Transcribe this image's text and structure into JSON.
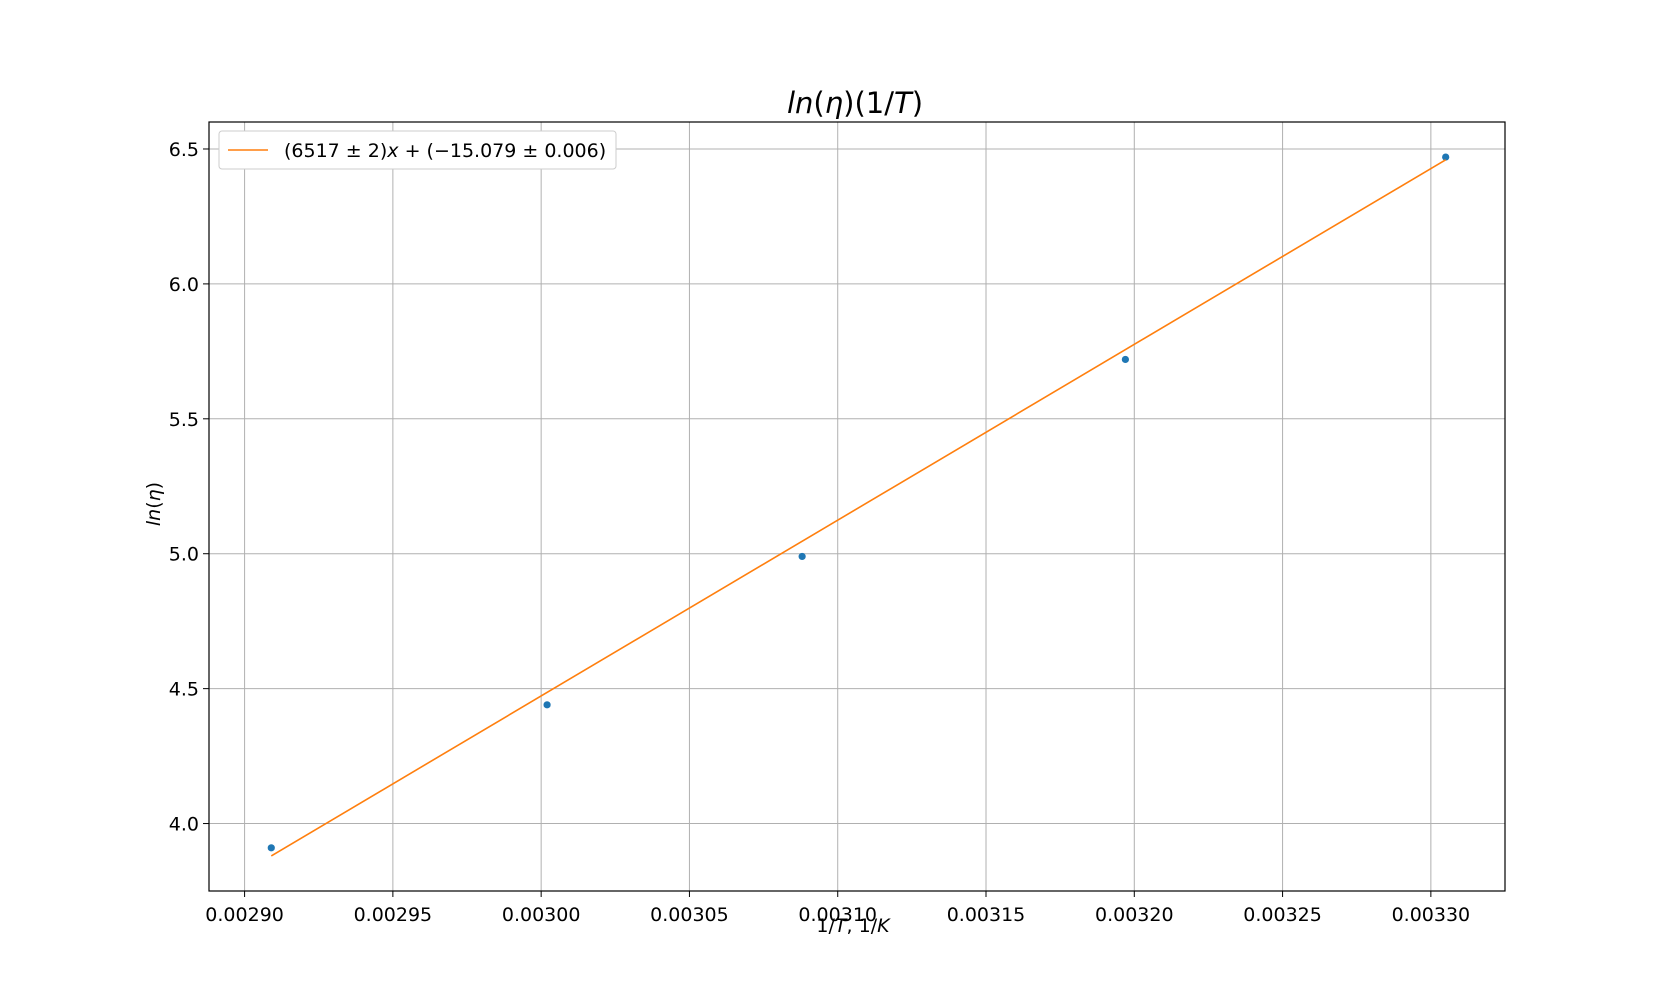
{
  "chart_data": {
    "type": "scatter",
    "title": "ln(η)(1/T)",
    "xlabel": "1/T, 1/K",
    "ylabel": "ln(η)",
    "xlim": [
      0.002888,
      0.003325
    ],
    "ylim": [
      3.75,
      6.6
    ],
    "xticks": [
      0.0029,
      0.00295,
      0.003,
      0.00305,
      0.0031,
      0.00315,
      0.0032,
      0.00325,
      0.0033
    ],
    "xtick_labels": [
      "0.00290",
      "0.00295",
      "0.00300",
      "0.00305",
      "0.00310",
      "0.00315",
      "0.00320",
      "0.00325",
      "0.00330"
    ],
    "yticks": [
      4.0,
      4.5,
      5.0,
      5.5,
      6.0,
      6.5
    ],
    "ytick_labels": [
      "4.0",
      "4.5",
      "5.0",
      "5.5",
      "6.0",
      "6.5"
    ],
    "grid": true,
    "legend_position": "top-left",
    "series": [
      {
        "kind": "points",
        "color": "#1f77b4",
        "x": [
          0.002909,
          0.003002,
          0.003088,
          0.003197,
          0.003305
        ],
        "y": [
          3.91,
          4.44,
          4.99,
          5.72,
          6.47
        ]
      },
      {
        "kind": "line",
        "name": "(6517 ± 2)x + (−15.079 ± 0.006)",
        "color": "#ff7f0e",
        "x": [
          0.002909,
          0.003305
        ],
        "y": [
          3.88,
          6.46
        ]
      }
    ]
  }
}
